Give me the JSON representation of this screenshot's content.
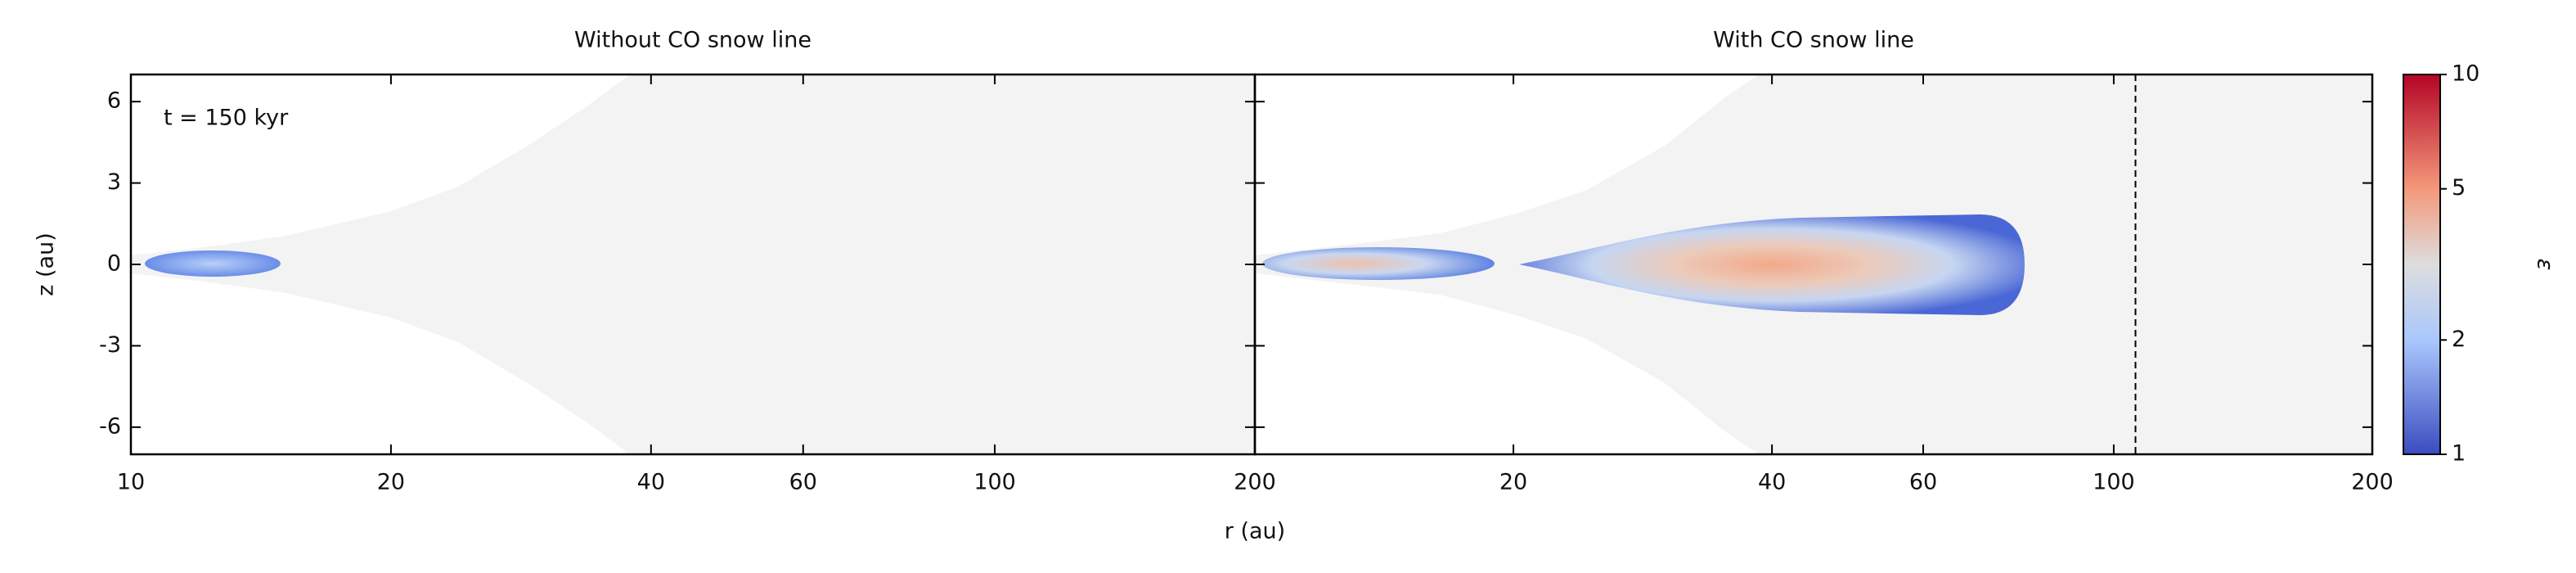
{
  "chart_data": [
    {
      "type": "heatmap",
      "title": "Without CO snow line",
      "xlabel": "r (au)",
      "ylabel": "z (au)",
      "annotation": "t = 150 kyr",
      "xlog": true,
      "xlim": [
        10,
        200
      ],
      "xticks": [
        10,
        20,
        40,
        60,
        100,
        200
      ],
      "ylim": [
        -7,
        7
      ],
      "yticks": [
        -6,
        -3,
        0,
        3,
        6
      ]
    },
    {
      "type": "heatmap",
      "title": "With CO snow line",
      "xlog": true,
      "xlim": [
        10,
        200
      ],
      "xticks": [
        20,
        40,
        60,
        100,
        200
      ],
      "ylim": [
        -7,
        7
      ],
      "snow_line_r": 106,
      "colorbar": {
        "label": "ε",
        "log": true,
        "lim": [
          1,
          10
        ],
        "ticks": [
          1,
          2,
          5,
          10
        ]
      }
    }
  ]
}
